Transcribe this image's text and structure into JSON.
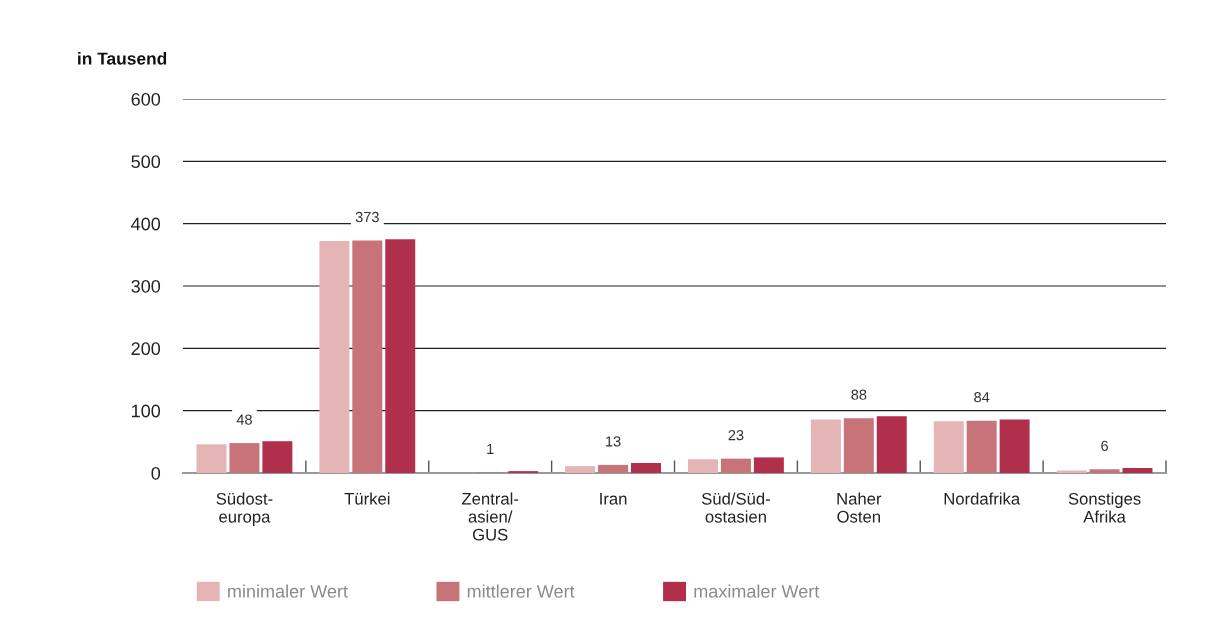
{
  "chart_data": {
    "type": "bar",
    "ylabel": "in Tausend",
    "categories": [
      "Südost-\neuropa",
      "Türkei",
      "Zentral-\nasien/\nGUS",
      "Iran",
      "Süd/Süd-\nostasien",
      "Naher\nOsten",
      "Nordafrika",
      "Sonstiges\nAfrika"
    ],
    "series": [
      {
        "name": "minimaler Wert",
        "color": "#e5b5b6",
        "values": [
          46,
          372,
          null,
          11,
          22,
          86,
          83,
          4
        ]
      },
      {
        "name": "mittlerer Wert",
        "color": "#c8737a",
        "values": [
          48,
          373,
          1,
          13,
          23,
          88,
          84,
          6
        ],
        "value_labels": [
          "48",
          "373",
          "1",
          "13",
          "23",
          "88",
          "84",
          "6"
        ]
      },
      {
        "name": "maximaler Wert",
        "color": "#b0304c",
        "values": [
          51,
          375,
          3,
          16,
          25,
          91,
          86,
          8
        ]
      }
    ],
    "ylim": [
      0,
      600
    ],
    "yticks": [
      0,
      100,
      200,
      300,
      400,
      500,
      600
    ],
    "grid": "y",
    "legend": "bottom"
  }
}
